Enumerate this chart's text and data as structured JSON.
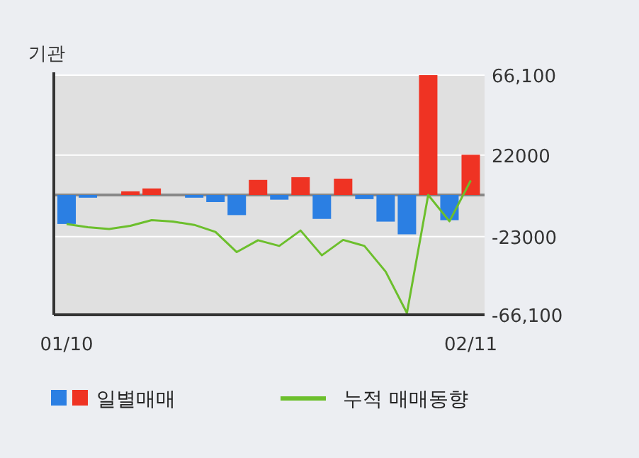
{
  "chart_data": {
    "type": "bar",
    "title": "기관",
    "categories": [
      "01/10",
      null,
      null,
      null,
      null,
      null,
      null,
      null,
      null,
      null,
      null,
      null,
      null,
      null,
      null,
      null,
      null,
      null,
      null,
      "02/11"
    ],
    "series": [
      {
        "name": "일별매매",
        "colors": [
          "#2b7fe3",
          "#2b7fe3",
          "#2b7fe3",
          "#ef3323",
          "#ef3323",
          "#2b7fe3",
          "#2b7fe3",
          "#2b7fe3",
          "#2b7fe3",
          "#ef3323",
          "#2b7fe3",
          "#ef3323",
          "#2b7fe3",
          "#ef3323",
          "#2b7fe3",
          "#2b7fe3",
          "#2b7fe3",
          "#ef3323",
          "#2b7fe3",
          "#ef3323"
        ],
        "values": [
          -16000,
          -1500,
          0,
          2000,
          3600,
          0,
          -1500,
          -3900,
          -11100,
          8300,
          -2600,
          9800,
          -13200,
          9000,
          -2300,
          -14700,
          -21700,
          66100,
          -13900,
          22200
        ]
      },
      {
        "name": "누적 매매동향",
        "type": "line",
        "color": "#6cbf2c",
        "values": [
          -16000,
          -17800,
          -18800,
          -17000,
          -13900,
          -14700,
          -16500,
          -20400,
          -31500,
          -25000,
          -28100,
          -19600,
          -33300,
          -24800,
          -28100,
          -42300,
          -65100,
          0,
          -14500,
          8000
        ]
      }
    ],
    "ylim": [
      -66100,
      66100
    ],
    "yticks": [
      {
        "value": 66100,
        "label": "66,100"
      },
      22000,
      -23000,
      {
        "value": -66100,
        "label": "-66,100"
      }
    ],
    "grid": "y",
    "legend": "bottom"
  }
}
